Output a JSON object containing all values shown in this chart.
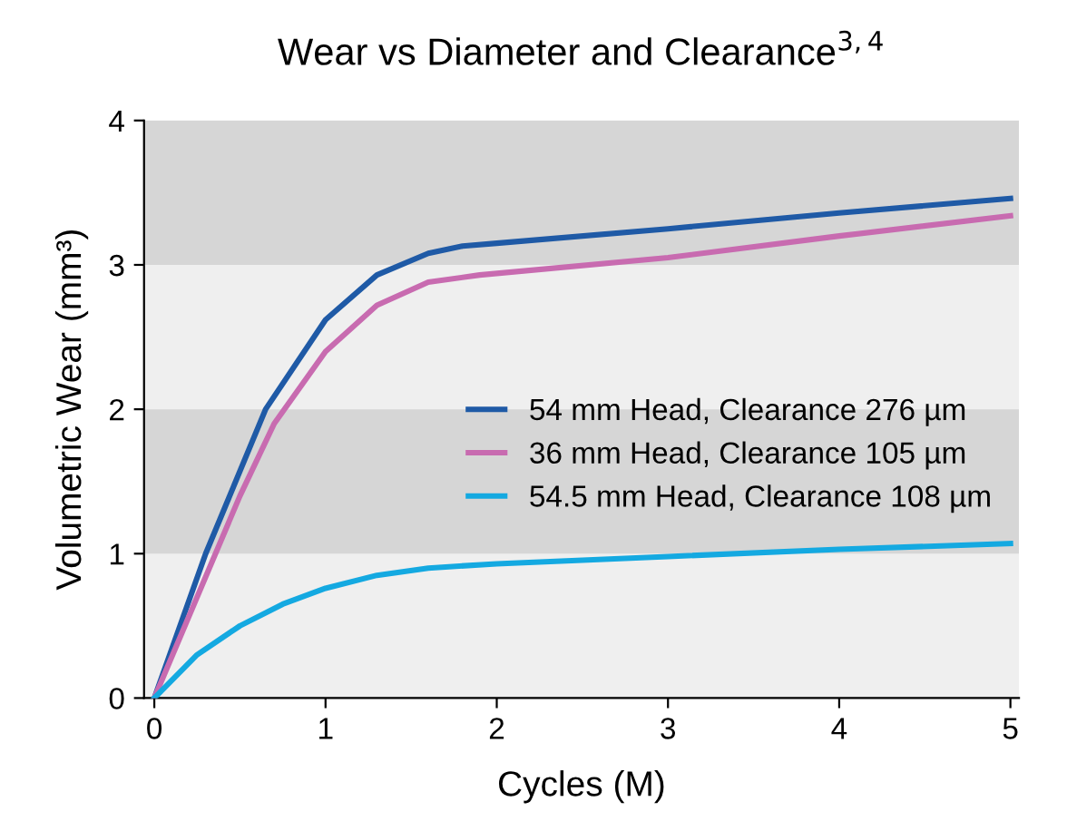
{
  "chart_data": {
    "type": "line",
    "title": "Wear vs Diameter and Clearance$^{3,4}$",
    "xlabel": "Cycles (M)",
    "ylabel": "Volumetric Wear (mm³)",
    "xlim": [
      -0.06,
      5.05
    ],
    "ylim": [
      0,
      4
    ],
    "xticks": [
      0,
      1,
      2,
      3,
      4,
      5
    ],
    "yticks": [
      0,
      1,
      2,
      3,
      4
    ],
    "bands": [
      {
        "axis": "y",
        "from": 1,
        "to": 2,
        "color": "#d6d6d6"
      },
      {
        "axis": "y",
        "from": 3,
        "to": 4,
        "color": "#d6d6d6"
      }
    ],
    "grid": false,
    "legend": "center right",
    "marker": "none",
    "line_style": "solid",
    "series": [
      {
        "name": "54 mm Head, Clearance 276 µm",
        "color": "#1f5aa6",
        "x": [
          0,
          0.3,
          0.65,
          1.0,
          1.3,
          1.6,
          1.8,
          2,
          3,
          4,
          5
        ],
        "values": [
          0,
          1.0,
          2.0,
          2.62,
          2.93,
          3.08,
          3.13,
          3.15,
          3.25,
          3.36,
          3.46
        ]
      },
      {
        "name": "36 mm Head, Clearance 105 µm",
        "color": "#c86bb0",
        "x": [
          0,
          0.5,
          0.7,
          1.0,
          1.3,
          1.6,
          1.9,
          3,
          4,
          5
        ],
        "values": [
          0,
          1.4,
          1.9,
          2.4,
          2.72,
          2.88,
          2.93,
          3.05,
          3.2,
          3.34
        ]
      },
      {
        "name": "54.5 mm Head, Clearance 108 µm",
        "color": "#14a9e1",
        "x": [
          0,
          0.25,
          0.5,
          0.75,
          1,
          1.3,
          1.6,
          2,
          3,
          4,
          5
        ],
        "values": [
          0,
          0.3,
          0.5,
          0.65,
          0.76,
          0.85,
          0.9,
          0.93,
          0.98,
          1.03,
          1.07
        ]
      }
    ]
  }
}
